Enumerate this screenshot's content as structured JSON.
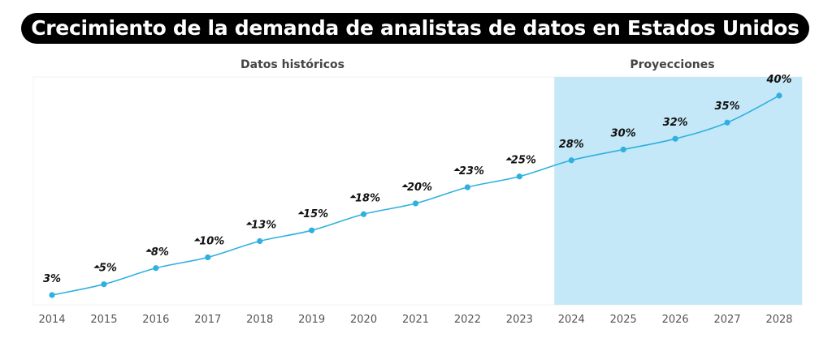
{
  "chart_data": {
    "type": "line",
    "title": "Crecimiento de la demanda de analistas de datos en Estados Unidos",
    "sections": {
      "historical": "Datos históricos",
      "projection": "Proyecciones"
    },
    "categories": [
      "2014",
      "2015",
      "2016",
      "2017",
      "2018",
      "2019",
      "2020",
      "2021",
      "2022",
      "2023",
      "2024",
      "2025",
      "2026",
      "2027",
      "2028"
    ],
    "values": [
      3,
      5,
      8,
      10,
      13,
      15,
      18,
      20,
      23,
      25,
      28,
      30,
      32,
      35,
      40
    ],
    "labels": [
      "3%",
      "5%",
      "8%",
      "10%",
      "13%",
      "15%",
      "18%",
      "20%",
      "23%",
      "25%",
      "28%",
      "30%",
      "32%",
      "35%",
      "40%"
    ],
    "up_arrow_markers": [
      false,
      true,
      true,
      true,
      true,
      true,
      true,
      true,
      true,
      true,
      false,
      false,
      false,
      false,
      false
    ],
    "projection_start": "2024",
    "xlabel": "",
    "ylabel": "",
    "grid": false,
    "colors": {
      "line": "#2fb0e0",
      "projection_band": "#c4e8f7",
      "title_bg": "#000000"
    }
  }
}
